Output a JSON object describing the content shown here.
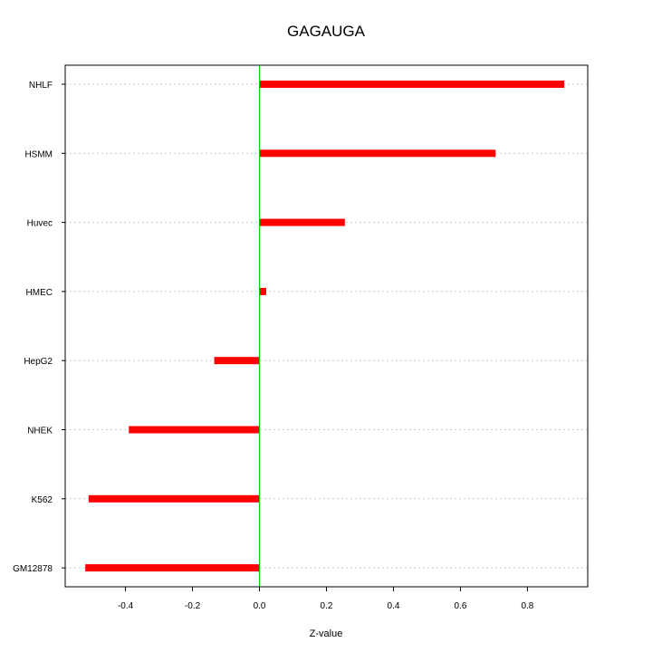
{
  "chart_data": {
    "type": "bar",
    "orientation": "horizontal",
    "title": "GAGAUGA",
    "xlabel": "Z-value",
    "ylabel": "",
    "categories": [
      "NHLF",
      "HSMM",
      "Huvec",
      "HMEC",
      "HepG2",
      "NHEK",
      "K562",
      "GM12878"
    ],
    "values": [
      0.91,
      0.705,
      0.255,
      0.02,
      -0.135,
      -0.39,
      -0.51,
      -0.52
    ],
    "xlim": [
      -0.58,
      0.98
    ],
    "x_ticks": [
      -0.4,
      -0.2,
      0.0,
      0.2,
      0.4,
      0.6,
      0.8
    ],
    "x_tick_labels": [
      "-0.4",
      "-0.2",
      "0.0",
      "0.2",
      "0.4",
      "0.6",
      "0.8"
    ],
    "grid": "horizontal dotted",
    "reference_line": 0,
    "colors": {
      "bar": "#ff0000",
      "reference_line": "#00cc00",
      "grid": "#c8c8c8",
      "axis": "#000000"
    }
  }
}
